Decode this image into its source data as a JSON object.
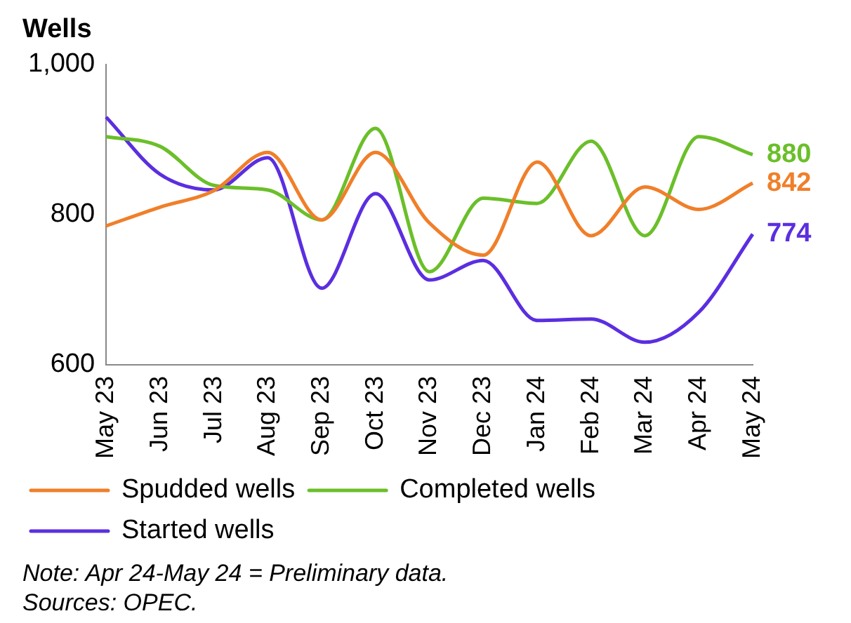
{
  "chart_data": {
    "type": "line",
    "ylabel": "Wells",
    "categories": [
      "May 23",
      "Jun 23",
      "Jul 23",
      "Aug 23",
      "Sep 23",
      "Oct 23",
      "Nov 23",
      "Dec 23",
      "Jan 24",
      "Feb 24",
      "Mar 24",
      "Apr 24",
      "May 24"
    ],
    "series": [
      {
        "name": "Spudded wells",
        "color": "#f07f2a",
        "values": [
          785,
          810,
          832,
          883,
          793,
          883,
          789,
          746,
          870,
          772,
          837,
          807,
          842
        ],
        "value_labels": [
          null,
          null,
          null,
          null,
          null,
          null,
          null,
          null,
          null,
          null,
          null,
          null,
          "842"
        ]
      },
      {
        "name": "Completed wells",
        "color": "#6bbf2a",
        "values": [
          904,
          891,
          839,
          833,
          793,
          915,
          724,
          822,
          815,
          898,
          772,
          904,
          880
        ],
        "value_labels": [
          null,
          null,
          null,
          null,
          null,
          null,
          null,
          null,
          null,
          null,
          null,
          null,
          "880"
        ]
      },
      {
        "name": "Started wells",
        "color": "#5b2ee0",
        "values": [
          930,
          854,
          833,
          876,
          702,
          828,
          713,
          739,
          659,
          661,
          630,
          670,
          774
        ],
        "value_labels": [
          null,
          null,
          null,
          null,
          null,
          null,
          null,
          null,
          null,
          null,
          null,
          null,
          "774"
        ]
      }
    ],
    "ylim": [
      600,
      1000
    ],
    "yticks": [
      600,
      800,
      {
        "value": 1000,
        "label": "1,000"
      }
    ],
    "grid": false,
    "legend": "bottom",
    "marker": "none",
    "line_style": "solid",
    "annotations": [
      "Note: Apr 24-May 24 = Preliminary data.",
      "Sources: OPEC."
    ]
  }
}
